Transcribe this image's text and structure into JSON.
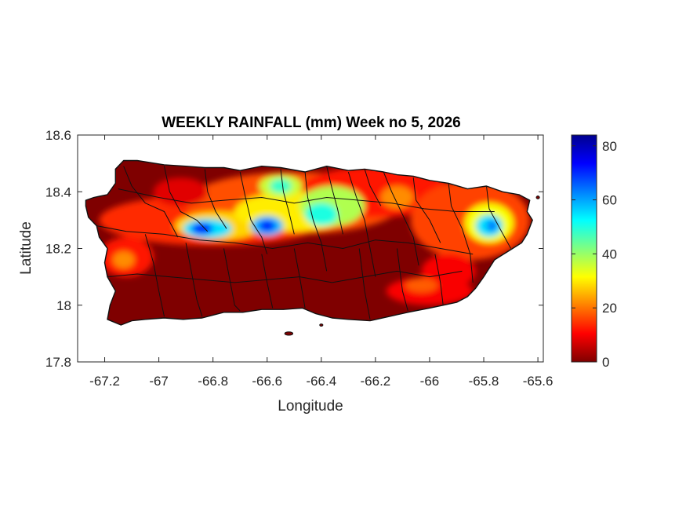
{
  "title": "WEEKLY RAINFALL (mm) Week no 5, 2026",
  "x_axis": {
    "label": "Longitude",
    "range": [
      -67.3,
      -65.58
    ],
    "ticks": [
      -67.2,
      -67,
      -66.8,
      -66.6,
      -66.4,
      -66.2,
      -66,
      -65.8,
      -65.6
    ],
    "tick_labels": [
      "-67.2",
      "-67",
      "-66.8",
      "-66.6",
      "-66.4",
      "-66.2",
      "-66",
      "-65.8",
      "-65.6"
    ]
  },
  "y_axis": {
    "label": "Latitude",
    "range": [
      17.8,
      18.6
    ],
    "ticks": [
      17.8,
      18,
      18.2,
      18.4,
      18.6
    ],
    "tick_labels": [
      "17.8",
      "18",
      "18.2",
      "18.4",
      "18.6"
    ]
  },
  "colorbar": {
    "colormap": "jet",
    "range": [
      0,
      84
    ],
    "ticks": [
      0,
      20,
      40,
      60,
      80
    ],
    "tick_labels": [
      "0",
      "20",
      "40",
      "60",
      "80"
    ],
    "colors": [
      "#7f0000",
      "#ff0000",
      "#ff8000",
      "#ffff00",
      "#80ff80",
      "#00ffff",
      "#0080ff",
      "#0000ff",
      "#00008f"
    ]
  },
  "chart_data": {
    "type": "heatmap",
    "description_units": "mm",
    "region": "Puerto Rico",
    "xlim": [
      -67.3,
      -65.58
    ],
    "ylim": [
      17.8,
      18.6
    ],
    "clim": [
      0,
      84
    ],
    "rainfall_peaks": [
      {
        "lon": -66.82,
        "lat": 18.27,
        "value": 75
      },
      {
        "lon": -66.6,
        "lat": 18.28,
        "value": 72
      },
      {
        "lon": -66.39,
        "lat": 18.32,
        "value": 52
      },
      {
        "lon": -66.55,
        "lat": 18.42,
        "value": 45
      },
      {
        "lon": -65.78,
        "lat": 18.28,
        "value": 62
      },
      {
        "lon": -66.12,
        "lat": 18.38,
        "value": 22
      },
      {
        "lon": -67.14,
        "lat": 18.16,
        "value": 22
      },
      {
        "lon": -65.98,
        "lat": 18.05,
        "value": 15
      }
    ]
  }
}
